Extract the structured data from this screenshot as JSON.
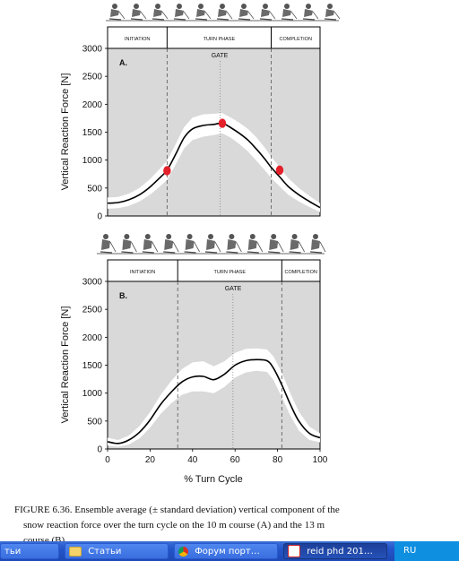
{
  "chart_data": [
    {
      "type": "line",
      "panel_label": "A.",
      "ylabel": "Vertical Reaction Force  [N]",
      "ylim": [
        0,
        3000
      ],
      "yticks": [
        0,
        500,
        1000,
        1500,
        2000,
        2500,
        3000
      ],
      "xlim": [
        0,
        100
      ],
      "phases": [
        {
          "label": "INITIATION",
          "start": 0,
          "end": 28
        },
        {
          "label": "TURN PHASE",
          "start": 28,
          "end": 77
        },
        {
          "label": "COMPLETION",
          "start": 77,
          "end": 100
        }
      ],
      "gate": {
        "label": "GATE",
        "x": 53
      },
      "x": [
        0,
        5,
        10,
        15,
        20,
        25,
        28,
        32,
        36,
        40,
        45,
        50,
        54,
        58,
        62,
        66,
        70,
        74,
        77,
        81,
        85,
        90,
        95,
        100
      ],
      "mean": [
        230,
        240,
        290,
        380,
        520,
        700,
        820,
        1100,
        1400,
        1560,
        1620,
        1640,
        1660,
        1580,
        1480,
        1360,
        1200,
        1020,
        870,
        700,
        530,
        380,
        260,
        150
      ],
      "sd": [
        100,
        100,
        110,
        120,
        140,
        160,
        170,
        180,
        190,
        200,
        200,
        190,
        180,
        180,
        190,
        200,
        210,
        200,
        190,
        170,
        150,
        120,
        100,
        80
      ],
      "markers": [
        {
          "x": 28,
          "y": 810
        },
        {
          "x": 54,
          "y": 1660
        },
        {
          "x": 81,
          "y": 820
        }
      ],
      "marker_color": "#e4202a",
      "band_color": "#ffffff",
      "background_color": "#d9d9d9"
    },
    {
      "type": "line",
      "panel_label": "B.",
      "ylabel": "Vertical Reaction Force  [N]",
      "xlabel": "% Turn Cycle",
      "ylim": [
        0,
        3000
      ],
      "yticks": [
        0,
        500,
        1000,
        1500,
        2000,
        2500,
        3000
      ],
      "xlim": [
        0,
        100
      ],
      "xticks": [
        0,
        20,
        40,
        60,
        80,
        100
      ],
      "phases": [
        {
          "label": "INITIATION",
          "start": 0,
          "end": 33
        },
        {
          "label": "TURN PHASE",
          "start": 33,
          "end": 82
        },
        {
          "label": "COMPLETION",
          "start": 82,
          "end": 100
        }
      ],
      "gate": {
        "label": "GATE",
        "x": 59
      },
      "x": [
        0,
        5,
        10,
        15,
        20,
        25,
        30,
        35,
        40,
        45,
        50,
        55,
        60,
        65,
        70,
        75,
        78,
        82,
        86,
        90,
        95,
        100
      ],
      "mean": [
        130,
        100,
        160,
        300,
        520,
        800,
        1020,
        1200,
        1290,
        1300,
        1240,
        1340,
        1500,
        1580,
        1600,
        1580,
        1450,
        1150,
        800,
        500,
        280,
        200
      ],
      "sd": [
        70,
        60,
        80,
        110,
        140,
        170,
        200,
        230,
        260,
        270,
        240,
        230,
        220,
        210,
        200,
        200,
        210,
        220,
        200,
        170,
        120,
        80
      ],
      "band_color": "#ffffff",
      "background_color": "#d9d9d9"
    }
  ],
  "caption": {
    "line1": "FIGURE 6.36.  Ensemble average (± standard deviation) vertical component of the",
    "line2": "snow reaction force over the turn cycle on the 10 m course (A) and the 13 m",
    "line3": "course (B)."
  },
  "taskbar": {
    "items": [
      {
        "label": "тьи",
        "icon": "folder-icon"
      },
      {
        "label": "Статьи",
        "icon": "folder-icon"
      },
      {
        "label": "Форум порт…",
        "icon": "chrome-icon"
      },
      {
        "label": "reid phd 201…",
        "icon": "pdf-icon"
      }
    ],
    "language": "RU"
  }
}
